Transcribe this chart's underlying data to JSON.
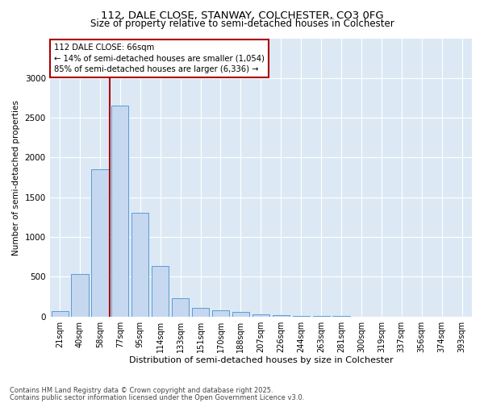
{
  "title1": "112, DALE CLOSE, STANWAY, COLCHESTER, CO3 0FG",
  "title2": "Size of property relative to semi-detached houses in Colchester",
  "xlabel": "Distribution of semi-detached houses by size in Colchester",
  "ylabel": "Number of semi-detached properties",
  "categories": [
    "21sqm",
    "40sqm",
    "58sqm",
    "77sqm",
    "95sqm",
    "114sqm",
    "133sqm",
    "151sqm",
    "170sqm",
    "188sqm",
    "207sqm",
    "226sqm",
    "244sqm",
    "263sqm",
    "281sqm",
    "300sqm",
    "319sqm",
    "337sqm",
    "356sqm",
    "374sqm",
    "393sqm"
  ],
  "values": [
    70,
    530,
    1850,
    2650,
    1310,
    640,
    230,
    110,
    80,
    55,
    30,
    15,
    8,
    4,
    3,
    2,
    1,
    1,
    0,
    0,
    0
  ],
  "bar_color": "#c5d8ef",
  "bar_edge_color": "#5b9bd5",
  "property_line_x": 2.5,
  "annotation_text": "112 DALE CLOSE: 66sqm\n← 14% of semi-detached houses are smaller (1,054)\n85% of semi-detached houses are larger (6,336) →",
  "annotation_box_color": "#ffffff",
  "annotation_box_edge": "#aa0000",
  "vline_color": "#aa0000",
  "ylim": [
    0,
    3500
  ],
  "yticks": [
    0,
    500,
    1000,
    1500,
    2000,
    2500,
    3000
  ],
  "footnote1": "Contains HM Land Registry data © Crown copyright and database right 2025.",
  "footnote2": "Contains public sector information licensed under the Open Government Licence v3.0.",
  "plot_bg_color": "#dce9f5",
  "fig_bg_color": "#ffffff",
  "grid_color": "#ffffff"
}
